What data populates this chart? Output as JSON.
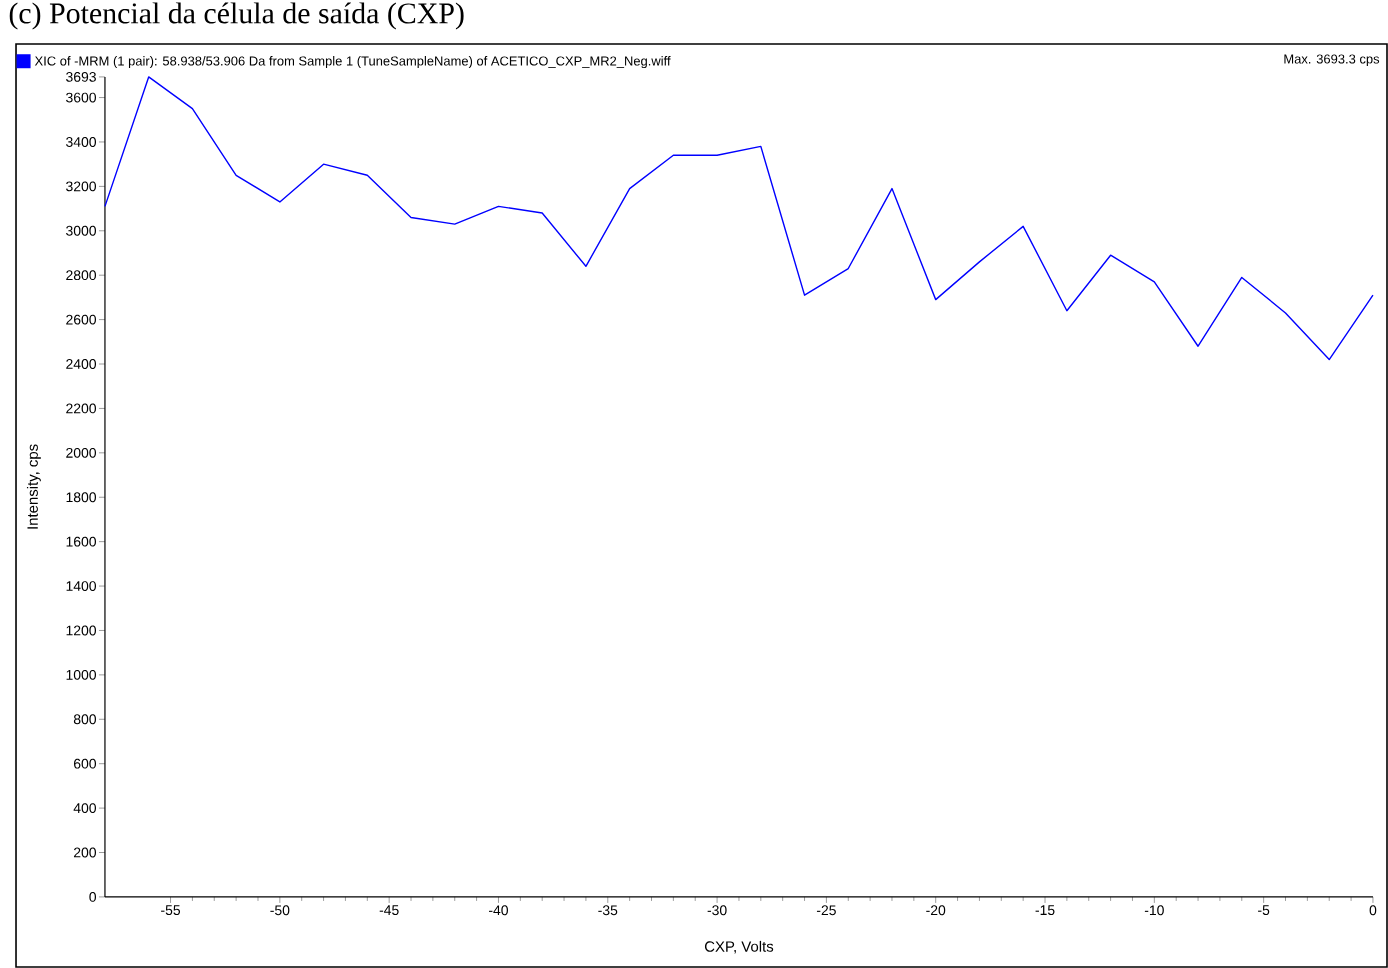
{
  "chart_data": {
    "type": "line",
    "title": "(c) Potencial da célula de saída (CXP)",
    "xlabel": "CXP, Volts",
    "ylabel": "Intensity, cps",
    "annotations": [
      "Max. 3693.3 cps"
    ],
    "x": [
      -58,
      -56,
      -54,
      -52,
      -50,
      -48,
      -46,
      -44,
      -42,
      -40,
      -38,
      -36,
      -34,
      -32,
      -30,
      -28,
      -26,
      -24,
      -22,
      -20,
      -18,
      -16,
      -14,
      -12,
      -10,
      -8,
      -6,
      -4,
      -2,
      0
    ],
    "series": [
      {
        "name": "XIC of -MRM (1 pair): 58.938/53.906 Da  from Sample 1 (TuneSampleName) of ACETICO_CXP_MR2_Neg.wiff",
        "color": "#0000ff",
        "values": [
          3110,
          3693,
          3550,
          3250,
          3130,
          3300,
          3250,
          3060,
          3030,
          3110,
          3080,
          2840,
          3190,
          3340,
          3340,
          3380,
          2710,
          2830,
          3190,
          2690,
          2860,
          3020,
          2640,
          2890,
          2770,
          2480,
          2790,
          2630,
          2420,
          2710
        ]
      }
    ],
    "xlim": [
      -58,
      0
    ],
    "ylim": [
      0,
      3693
    ],
    "xticks": [
      -55,
      -50,
      -45,
      -40,
      -35,
      -30,
      -25,
      -20,
      -15,
      -10,
      -5,
      0
    ],
    "yticks": [
      0,
      200,
      400,
      600,
      800,
      1000,
      1200,
      1400,
      1600,
      1800,
      2000,
      2200,
      2400,
      2600,
      2800,
      3000,
      3200,
      3400,
      3600,
      3693
    ],
    "legend": "top left",
    "marker": "none",
    "line_style": "solid"
  }
}
